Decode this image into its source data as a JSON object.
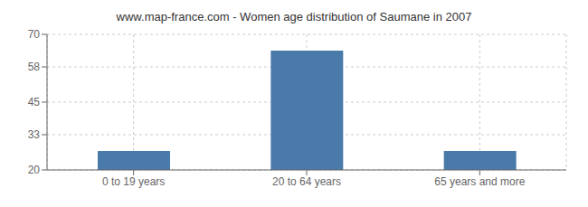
{
  "chart_data": {
    "type": "bar",
    "title": "www.map-france.com - Women age distribution of Saumane in 2007",
    "categories": [
      "0 to 19 years",
      "20 to 64 years",
      "65 years and more"
    ],
    "values": [
      27,
      64,
      27
    ],
    "color": "#4a7aaa",
    "ylim": [
      20,
      70
    ],
    "yticks": [
      20,
      33,
      45,
      58,
      70
    ],
    "grid": true
  }
}
